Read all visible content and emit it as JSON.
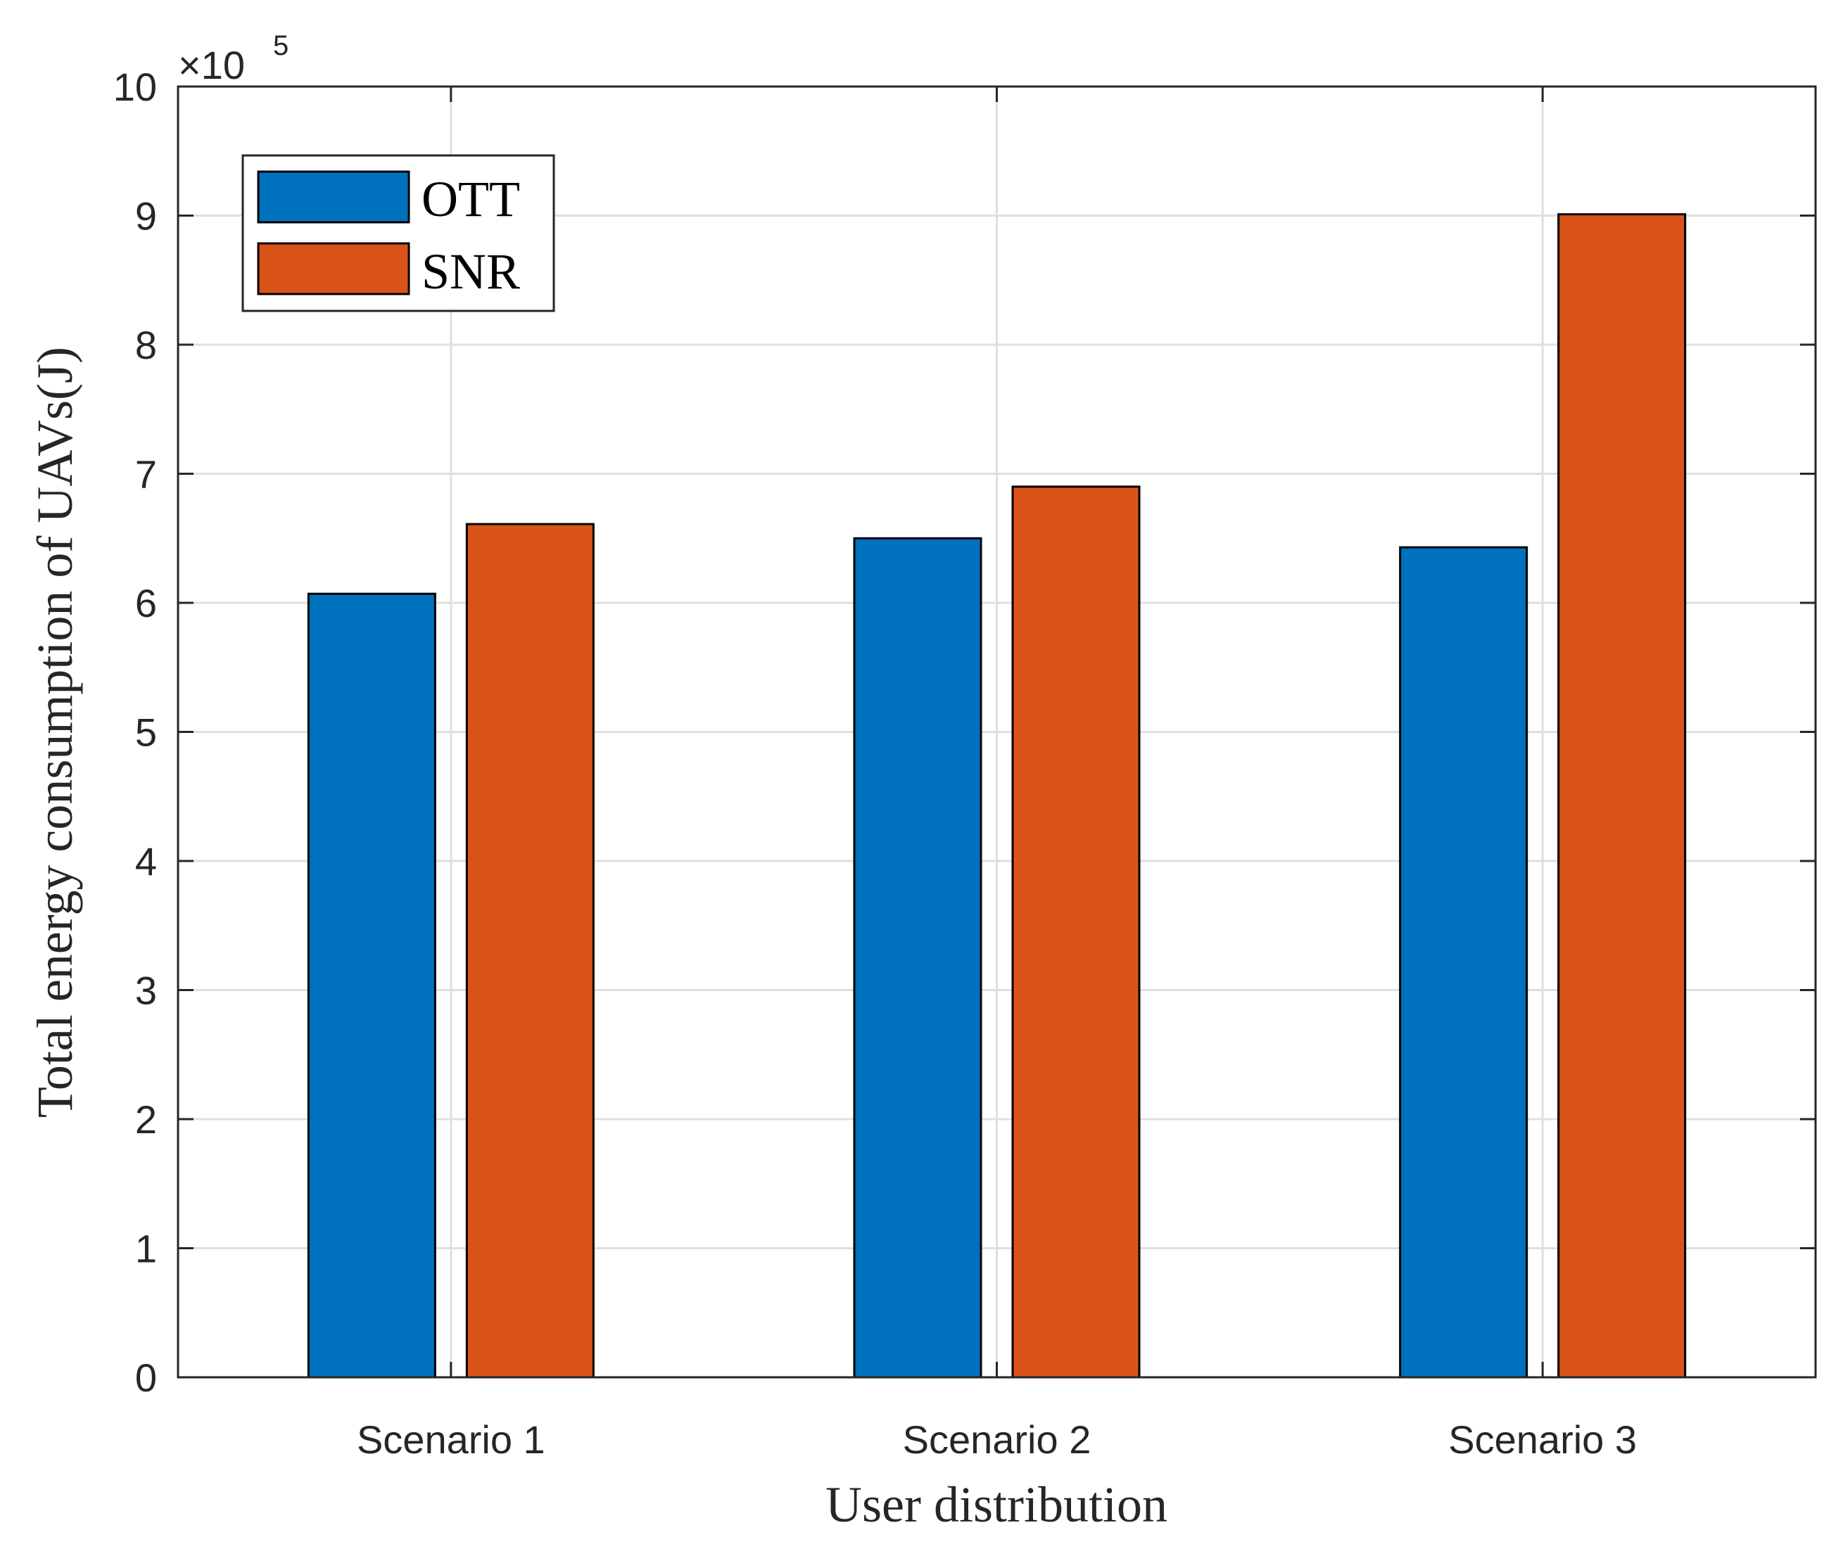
{
  "chart_data": {
    "type": "bar",
    "categories": [
      "Scenario 1",
      "Scenario 2",
      "Scenario 3"
    ],
    "series": [
      {
        "name": "OTT",
        "color": "#0072BD",
        "values": [
          6.07,
          6.5,
          6.43
        ]
      },
      {
        "name": "SNR",
        "color": "#D95319",
        "values": [
          6.61,
          6.9,
          9.01
        ]
      }
    ],
    "title": "",
    "xlabel": "User distribution",
    "ylabel": "Total energy consumption of UAVs(J)",
    "ylim": [
      0,
      10
    ],
    "yticks": [
      "0",
      "1",
      "2",
      "3",
      "4",
      "5",
      "6",
      "7",
      "8",
      "9",
      "10"
    ],
    "y_exponent": {
      "base": "×10",
      "power": "5"
    },
    "grid": true,
    "legend_position": "top-left"
  }
}
